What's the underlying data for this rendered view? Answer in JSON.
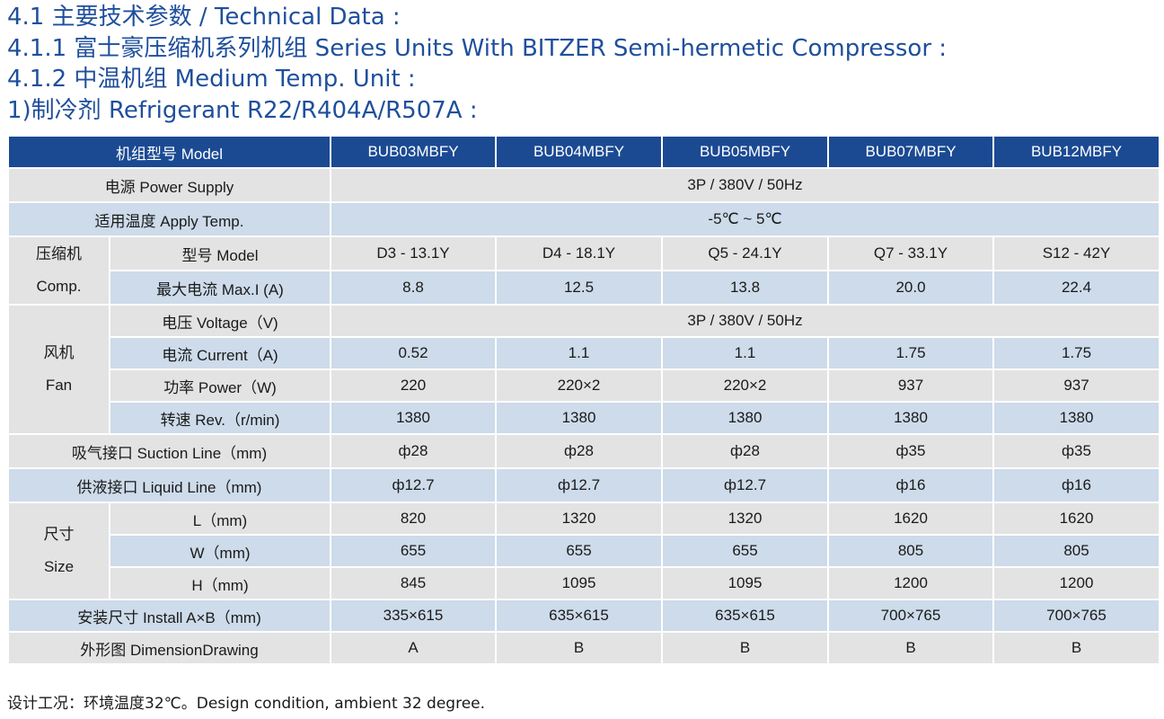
{
  "headings": [
    "4.1 主要技术参数 / Technical Data :",
    "4.1.1 富士豪压缩机系列机组 Series Units With BITZER Semi-hermetic Compressor :",
    "4.1.2 中温机组 Medium Temp. Unit :",
    "1)制冷剂 Refrigerant R22/R404A/R507A :"
  ],
  "table": {
    "model_header": "机组型号 Model",
    "models": [
      "BUB03MBFY",
      "BUB04MBFY",
      "BUB05MBFY",
      "BUB07MBFY",
      "BUB12MBFY"
    ],
    "power_supply": {
      "label": "电源 Power Supply",
      "value": "3P / 380V / 50Hz"
    },
    "apply_temp": {
      "label": "适用温度 Apply Temp.",
      "value": "-5℃ ~ 5℃"
    },
    "compressor": {
      "group": [
        "压缩机",
        "Comp."
      ],
      "model": {
        "label": "型号 Model",
        "values": [
          "D3 - 13.1Y",
          "D4 - 18.1Y",
          "Q5 - 24.1Y",
          "Q7 - 33.1Y",
          "S12 - 42Y"
        ]
      },
      "max_current": {
        "label": "最大电流 Max.I (A)",
        "values": [
          "8.8",
          "12.5",
          "13.8",
          "20.0",
          "22.4"
        ]
      }
    },
    "fan": {
      "group": [
        "风机",
        "Fan"
      ],
      "voltage": {
        "label": "电压 Voltage（V)",
        "value": "3P / 380V / 50Hz"
      },
      "current": {
        "label": "电流 Current（A)",
        "values": [
          "0.52",
          "1.1",
          "1.1",
          "1.75",
          "1.75"
        ]
      },
      "power": {
        "label": "功率 Power（W)",
        "values": [
          "220",
          "220×2",
          "220×2",
          "937",
          "937"
        ]
      },
      "rev": {
        "label": "转速 Rev.（r/min)",
        "values": [
          "1380",
          "1380",
          "1380",
          "1380",
          "1380"
        ]
      }
    },
    "suction_line": {
      "label": "吸气接口 Suction Line（mm)",
      "values": [
        "ф28",
        "ф28",
        "ф28",
        "ф35",
        "ф35"
      ]
    },
    "liquid_line": {
      "label": "供液接口 Liquid Line（mm)",
      "values": [
        "ф12.7",
        "ф12.7",
        "ф12.7",
        "ф16",
        "ф16"
      ]
    },
    "size": {
      "group": [
        "尺寸",
        "Size"
      ],
      "l": {
        "label": "L（mm)",
        "values": [
          "820",
          "1320",
          "1320",
          "1620",
          "1620"
        ]
      },
      "w": {
        "label": "W（mm)",
        "values": [
          "655",
          "655",
          "655",
          "805",
          "805"
        ]
      },
      "h": {
        "label": "H（mm)",
        "values": [
          "845",
          "1095",
          "1095",
          "1200",
          "1200"
        ]
      }
    },
    "install": {
      "label": "安装尺寸  Install A×B（mm)",
      "values": [
        "335×615",
        "635×615",
        "635×615",
        "700×765",
        "700×765"
      ]
    },
    "drawing": {
      "label": "外形图 DimensionDrawing",
      "values": [
        "A",
        "B",
        "B",
        "B",
        "B"
      ]
    }
  },
  "note": "设计工况：环境温度32℃。Design condition, ambient 32 degree.",
  "colors": {
    "heading": "#1f4f9c",
    "header_bg": "#1b4a93",
    "row_gray": "#e3e3e3",
    "row_blue": "#cddbea"
  }
}
